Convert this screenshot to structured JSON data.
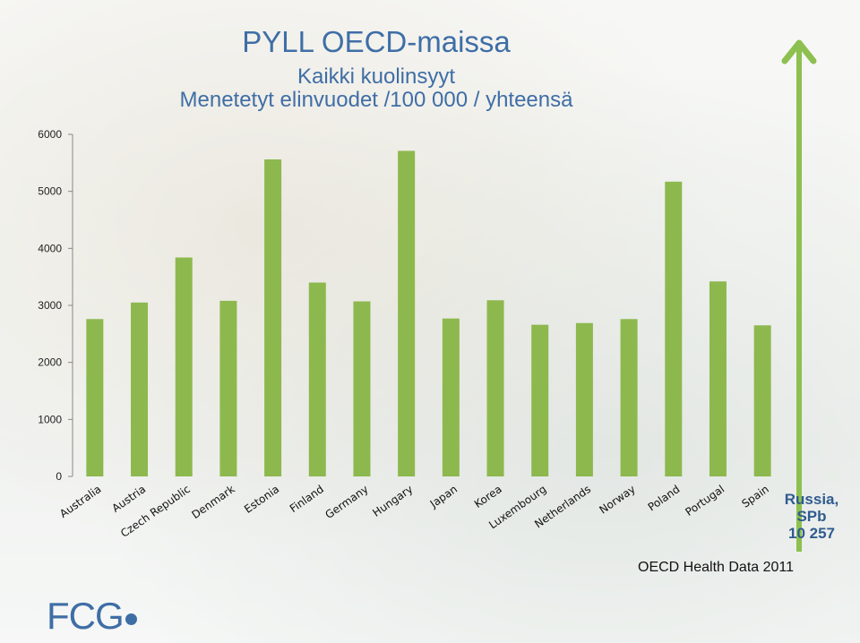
{
  "title": "PYLL OECD-maissa",
  "subtitle1": "Kaikki kuolinsyyt",
  "subtitle2": "Menetetyt elinvuodet /100 000 / yhteensä",
  "source": "OECD Health Data 2011",
  "logo": "FCG",
  "russia": {
    "line1": "Russia,",
    "line2": "SPb",
    "line3": "10 257"
  },
  "colors": {
    "bar": "#8db84e",
    "arrow": "#8dc04f",
    "title": "#3f6ea6"
  },
  "chart_data": {
    "type": "bar",
    "categories": [
      "Australia",
      "Austria",
      "Czech Republic",
      "Denmark",
      "Estonia",
      "Finland",
      "Germany",
      "Hungary",
      "Japan",
      "Korea",
      "Luxembourg",
      "Netherlands",
      "Norway",
      "Poland",
      "Portugal",
      "Spain"
    ],
    "values": [
      2760,
      3050,
      3840,
      3080,
      5560,
      3400,
      3070,
      5710,
      2770,
      3090,
      2660,
      2690,
      2760,
      5170,
      3420,
      2650
    ],
    "yticks": [
      0,
      1000,
      2000,
      3000,
      4000,
      5000,
      6000
    ],
    "ylim": [
      0,
      6000
    ],
    "grid": false
  }
}
